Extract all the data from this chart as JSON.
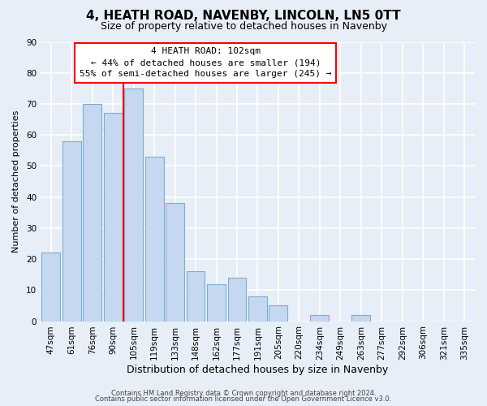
{
  "title": "4, HEATH ROAD, NAVENBY, LINCOLN, LN5 0TT",
  "subtitle": "Size of property relative to detached houses in Navenby",
  "xlabel": "Distribution of detached houses by size in Navenby",
  "ylabel": "Number of detached properties",
  "bar_labels": [
    "47sqm",
    "61sqm",
    "76sqm",
    "90sqm",
    "105sqm",
    "119sqm",
    "133sqm",
    "148sqm",
    "162sqm",
    "177sqm",
    "191sqm",
    "205sqm",
    "220sqm",
    "234sqm",
    "249sqm",
    "263sqm",
    "277sqm",
    "292sqm",
    "306sqm",
    "321sqm",
    "335sqm"
  ],
  "bar_values": [
    22,
    58,
    70,
    67,
    75,
    53,
    38,
    16,
    12,
    14,
    8,
    5,
    0,
    2,
    0,
    2,
    0,
    0,
    0,
    0,
    0
  ],
  "bar_color": "#c5d8f0",
  "bar_edge_color": "#7aaed4",
  "red_line_bar_index": 4,
  "ylim": [
    0,
    90
  ],
  "yticks": [
    0,
    10,
    20,
    30,
    40,
    50,
    60,
    70,
    80,
    90
  ],
  "annotation_title": "4 HEATH ROAD: 102sqm",
  "annotation_line1": "← 44% of detached houses are smaller (194)",
  "annotation_line2": "55% of semi-detached houses are larger (245) →",
  "footer1": "Contains HM Land Registry data © Crown copyright and database right 2024.",
  "footer2": "Contains public sector information licensed under the Open Government Licence v3.0.",
  "background_color": "#e8eef7",
  "plot_background": "#e8eef7",
  "grid_color": "#ffffff",
  "title_fontsize": 11,
  "subtitle_fontsize": 9,
  "xlabel_fontsize": 9,
  "ylabel_fontsize": 8,
  "tick_fontsize": 7.5,
  "footer_fontsize": 6,
  "annotation_fontsize": 8
}
